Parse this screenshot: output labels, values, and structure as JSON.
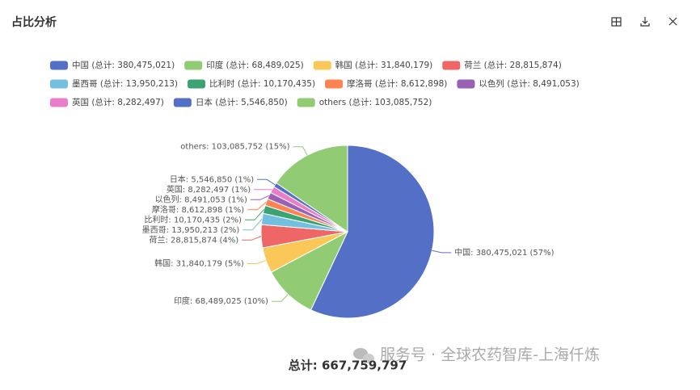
{
  "title": "占比分析",
  "watermark": "服务号 · 全球农药智库-上海仟炼",
  "chart_data": {
    "type": "pie",
    "categories": [
      "中国",
      "印度",
      "韩国",
      "荷兰",
      "墨西哥",
      "比利时",
      "摩洛哥",
      "以色列",
      "英国",
      "日本",
      "others"
    ],
    "values": [
      380475021,
      68489025,
      31840179,
      28815874,
      13950213,
      10170435,
      8612898,
      8491053,
      8282497,
      5546850,
      103085752
    ],
    "colors": [
      "#5470c6",
      "#91cc75",
      "#fac858",
      "#ee6666",
      "#73c0de",
      "#3ba272",
      "#fc8452",
      "#9a60b4",
      "#ea7ccc",
      "#5470c6",
      "#91cc75"
    ],
    "legend_labels": [
      "中国 (总计: 380,475,021)",
      "印度 (总计: 68,489,025)",
      "韩国 (总计: 31,840,179)",
      "荷兰 (总计: 28,815,874)",
      "墨西哥 (总计: 13,950,213)",
      "比利时 (总计: 10,170,435)",
      "摩洛哥 (总计: 8,612,898)",
      "以色列 (总计: 8,491,053)",
      "英国 (总计: 8,282,497)",
      "日本 (总计: 5,546,850)",
      "others (总计: 103,085,752)"
    ],
    "value_labels": [
      "中国: 380,475,021 (57%)",
      "印度: 68,489,025 (10%)",
      "韩国: 31,840,179 (5%)",
      "荷兰: 28,815,874 (4%)",
      "墨西哥: 13,950,213 (2%)",
      "比利时: 10,170,435 (2%)",
      "摩洛哥: 8,612,898 (1%)",
      "以色列: 8,491,053 (1%)",
      "英国: 8,282,497 (1%)",
      "日本: 5,546,850 (1%)",
      "others: 103,085,752 (15%)"
    ],
    "total_label": "总计: 667,759,797"
  }
}
